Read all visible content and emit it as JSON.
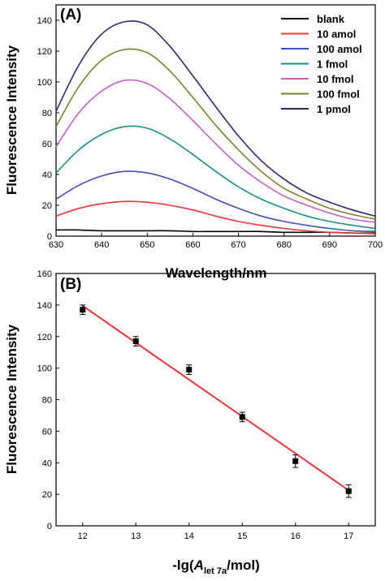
{
  "chart_data": [
    {
      "panel": "(A)",
      "type": "line",
      "xlabel": "Wavelength/nm",
      "ylabel": "Fluorescence Intensity",
      "xlim": [
        630,
        700
      ],
      "ylim": [
        0,
        150
      ],
      "xticks": [
        630,
        640,
        650,
        660,
        670,
        680,
        690,
        700
      ],
      "yticks": [
        0,
        20,
        40,
        60,
        80,
        100,
        120,
        140
      ],
      "legend_position": "top-right",
      "x": [
        630,
        635,
        640,
        645,
        650,
        655,
        660,
        665,
        670,
        675,
        680,
        685,
        690,
        695,
        700
      ],
      "series": [
        {
          "name": "blank",
          "color": "#000000",
          "values": [
            4,
            4,
            3.5,
            3.5,
            3.5,
            3.5,
            3,
            3,
            3,
            3,
            2.5,
            2.5,
            2.5,
            2,
            2
          ]
        },
        {
          "name": "10 amol",
          "color": "#e8383d",
          "values": [
            13,
            18,
            21,
            22.5,
            22,
            20,
            17,
            13,
            9.5,
            7,
            5,
            3.5,
            2.5,
            2,
            1.5
          ]
        },
        {
          "name": "100 amol",
          "color": "#3f51b5",
          "values": [
            24,
            33,
            39,
            42,
            41,
            37,
            31,
            24,
            18,
            13,
            9.5,
            7,
            5,
            3.5,
            3
          ]
        },
        {
          "name": "1 fmol",
          "color": "#1a8f8a",
          "values": [
            41,
            56,
            66,
            71,
            70,
            63,
            53,
            42,
            32,
            24,
            18,
            13,
            9.5,
            7,
            5
          ]
        },
        {
          "name": "10 fmol",
          "color": "#c15fc4",
          "values": [
            58,
            80,
            94,
            101,
            99,
            89,
            75,
            60,
            46,
            35,
            26,
            20,
            15,
            11,
            9
          ]
        },
        {
          "name": "100 fmol",
          "color": "#808030",
          "values": [
            71,
            97,
            114,
            121,
            119,
            107,
            90,
            72,
            56,
            42,
            31,
            24,
            18,
            14,
            11
          ]
        },
        {
          "name": "1 pmol",
          "color": "#2a2a6e",
          "values": [
            81,
            111,
            131,
            139,
            137,
            123,
            104,
            84,
            65,
            49,
            37,
            28,
            22,
            17,
            13
          ]
        }
      ]
    },
    {
      "panel": "(B)",
      "type": "scatter",
      "xlabel": "-lg(A let 7a /mol)",
      "xlabel_parts": {
        "prefix": "-lg(",
        "italic": "A",
        "subscript": "let 7a",
        "suffix": "/mol)"
      },
      "ylabel": "Fluorescence Intensity",
      "xlim": [
        11.5,
        17.5
      ],
      "ylim": [
        0,
        160
      ],
      "xticks": [
        12,
        13,
        14,
        15,
        16,
        17
      ],
      "yticks": [
        0,
        20,
        40,
        60,
        80,
        100,
        120,
        140,
        160
      ],
      "points": [
        {
          "x": 12,
          "y": 137,
          "err": 3
        },
        {
          "x": 13,
          "y": 117,
          "err": 3
        },
        {
          "x": 14,
          "y": 99,
          "err": 3
        },
        {
          "x": 15,
          "y": 69,
          "err": 3
        },
        {
          "x": 16,
          "y": 41,
          "err": 4
        },
        {
          "x": 17,
          "y": 22,
          "err": 4
        }
      ],
      "fit_line": {
        "x": [
          12,
          17
        ],
        "y": [
          139.5,
          22.5
        ],
        "color": "#e8383d"
      }
    }
  ]
}
